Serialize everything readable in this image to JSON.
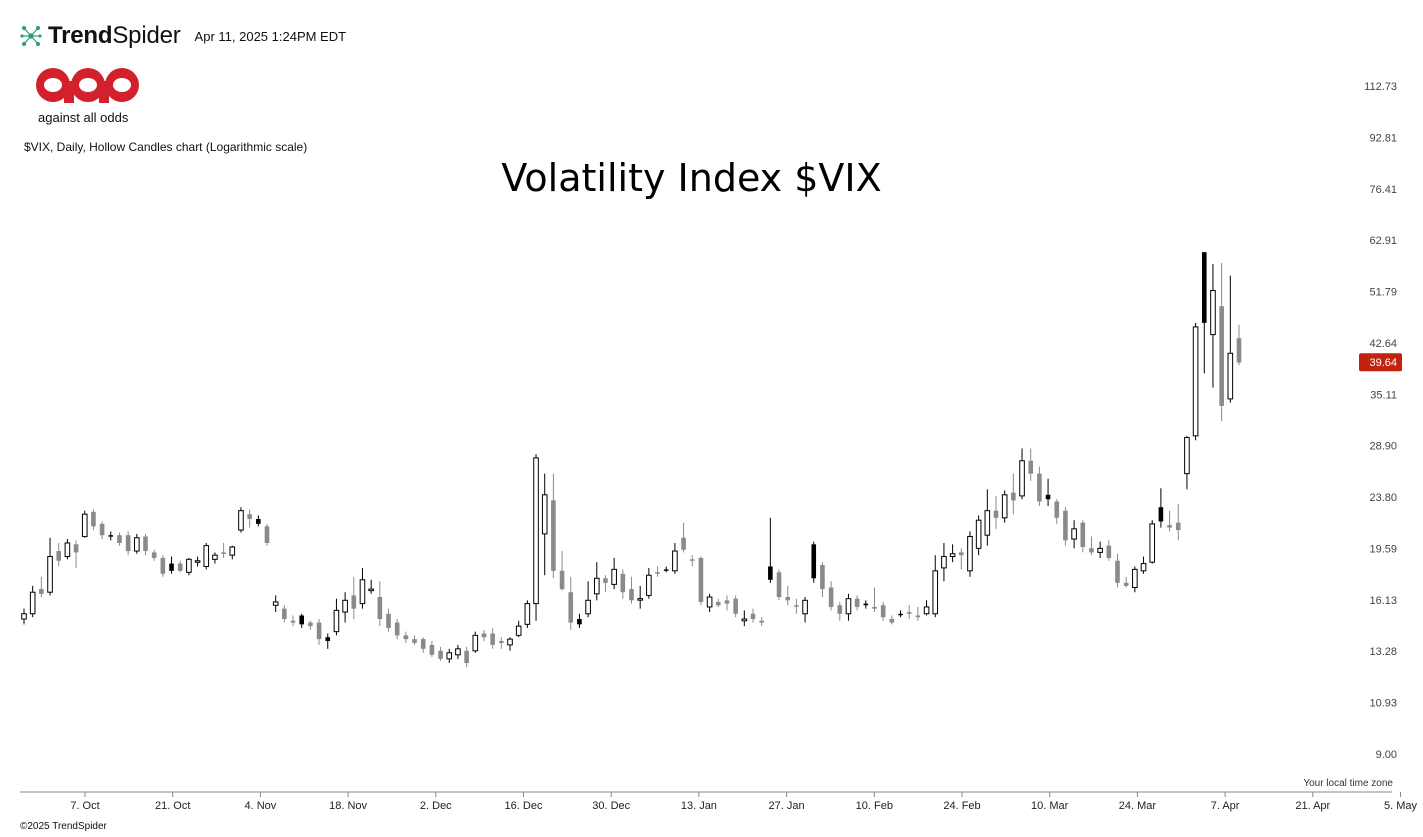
{
  "header": {
    "brand_bold": "Trend",
    "brand_light": "Spider",
    "timestamp": "Apr 11, 2025 1:24PM EDT"
  },
  "logo": {
    "caption": "against all odds",
    "color": "#d2202c"
  },
  "subtitle": "$VIX, Daily, Hollow Candles chart (Logarithmic scale)",
  "title": "Volatility Index $VIX",
  "local_tz": "Your local time zone",
  "copyright": "©2025 TrendSpider",
  "colors": {
    "grey": "#8a8a8a",
    "black": "#000000",
    "hollow_stroke": "#000000",
    "last_price_bg": "#c0230f"
  },
  "chart_data": {
    "type": "candlestick",
    "symbol": "$VIX",
    "interval": "Daily",
    "style": "Hollow Candles",
    "scale": "logarithmic",
    "ylim": [
      8.4,
      121
    ],
    "y_ticks": [
      "112.73",
      "92.81",
      "76.41",
      "62.91",
      "51.79",
      "42.64",
      "35.11",
      "28.90",
      "23.80",
      "19.59",
      "16.13",
      "13.28",
      "10.93",
      "9.00"
    ],
    "x_ticks": [
      "7. Oct",
      "21. Oct",
      "4. Nov",
      "18. Nov",
      "2. Dec",
      "16. Dec",
      "30. Dec",
      "13. Jan",
      "27. Jan",
      "10. Feb",
      "24. Feb",
      "10. Mar",
      "24. Mar",
      "7. Apr",
      "21. Apr",
      "5. May"
    ],
    "last_price": "39.64",
    "candles": [
      {
        "o": 15.0,
        "h": 15.6,
        "l": 14.7,
        "c": 15.3,
        "s": "hollow"
      },
      {
        "o": 15.3,
        "h": 17.0,
        "l": 15.1,
        "c": 16.6,
        "s": "hollow"
      },
      {
        "o": 16.5,
        "h": 17.6,
        "l": 16.3,
        "c": 16.8,
        "s": "grey"
      },
      {
        "o": 16.6,
        "h": 20.4,
        "l": 16.4,
        "c": 19.0,
        "s": "hollow"
      },
      {
        "o": 19.4,
        "h": 20.0,
        "l": 18.3,
        "c": 18.7,
        "s": "grey"
      },
      {
        "o": 19.0,
        "h": 20.3,
        "l": 18.8,
        "c": 20.0,
        "s": "hollow"
      },
      {
        "o": 19.9,
        "h": 20.2,
        "l": 18.2,
        "c": 19.3,
        "s": "grey"
      },
      {
        "o": 20.5,
        "h": 22.6,
        "l": 20.4,
        "c": 22.3,
        "s": "hollow"
      },
      {
        "o": 22.5,
        "h": 22.7,
        "l": 21.0,
        "c": 21.3,
        "s": "grey"
      },
      {
        "o": 21.5,
        "h": 21.7,
        "l": 20.3,
        "c": 20.6,
        "s": "grey"
      },
      {
        "o": 20.5,
        "h": 20.9,
        "l": 20.2,
        "c": 20.6,
        "s": "black"
      },
      {
        "o": 20.6,
        "h": 20.8,
        "l": 19.8,
        "c": 20.0,
        "s": "grey"
      },
      {
        "o": 20.6,
        "h": 20.9,
        "l": 19.1,
        "c": 19.4,
        "s": "grey"
      },
      {
        "o": 19.4,
        "h": 20.7,
        "l": 19.2,
        "c": 20.4,
        "s": "hollow"
      },
      {
        "o": 20.5,
        "h": 20.7,
        "l": 19.1,
        "c": 19.4,
        "s": "grey"
      },
      {
        "o": 19.3,
        "h": 19.5,
        "l": 18.7,
        "c": 18.9,
        "s": "grey"
      },
      {
        "o": 18.9,
        "h": 19.1,
        "l": 17.6,
        "c": 17.8,
        "s": "grey"
      },
      {
        "o": 18.5,
        "h": 19.0,
        "l": 17.8,
        "c": 18.0,
        "s": "black"
      },
      {
        "o": 18.5,
        "h": 18.7,
        "l": 17.9,
        "c": 18.0,
        "s": "grey"
      },
      {
        "o": 17.9,
        "h": 18.9,
        "l": 17.7,
        "c": 18.8,
        "s": "hollow"
      },
      {
        "o": 18.6,
        "h": 19.0,
        "l": 18.3,
        "c": 18.7,
        "s": "hollow"
      },
      {
        "o": 18.3,
        "h": 20.0,
        "l": 18.1,
        "c": 19.8,
        "s": "hollow"
      },
      {
        "o": 18.8,
        "h": 19.3,
        "l": 18.5,
        "c": 19.1,
        "s": "hollow"
      },
      {
        "o": 19.2,
        "h": 20.0,
        "l": 18.9,
        "c": 19.3,
        "s": "grey"
      },
      {
        "o": 19.1,
        "h": 19.8,
        "l": 18.8,
        "c": 19.7,
        "s": "hollow"
      },
      {
        "o": 21.0,
        "h": 22.9,
        "l": 20.8,
        "c": 22.6,
        "s": "hollow"
      },
      {
        "o": 22.3,
        "h": 22.7,
        "l": 21.2,
        "c": 21.9,
        "s": "grey"
      },
      {
        "o": 21.9,
        "h": 22.2,
        "l": 21.3,
        "c": 21.5,
        "s": "black"
      },
      {
        "o": 21.3,
        "h": 21.5,
        "l": 19.8,
        "c": 20.0,
        "s": "grey"
      },
      {
        "o": 15.8,
        "h": 16.4,
        "l": 15.4,
        "c": 16.0,
        "s": "hollow"
      },
      {
        "o": 15.6,
        "h": 15.8,
        "l": 14.8,
        "c": 15.0,
        "s": "grey"
      },
      {
        "o": 14.9,
        "h": 15.2,
        "l": 14.6,
        "c": 14.8,
        "s": "grey"
      },
      {
        "o": 15.2,
        "h": 15.3,
        "l": 14.5,
        "c": 14.7,
        "s": "black"
      },
      {
        "o": 14.8,
        "h": 14.9,
        "l": 14.4,
        "c": 14.6,
        "s": "grey"
      },
      {
        "o": 14.8,
        "h": 15.0,
        "l": 13.6,
        "c": 13.9,
        "s": "grey"
      },
      {
        "o": 13.8,
        "h": 14.2,
        "l": 13.4,
        "c": 14.0,
        "s": "black"
      },
      {
        "o": 14.3,
        "h": 16.2,
        "l": 14.1,
        "c": 15.5,
        "s": "hollow"
      },
      {
        "o": 15.4,
        "h": 16.6,
        "l": 14.8,
        "c": 16.1,
        "s": "hollow"
      },
      {
        "o": 16.4,
        "h": 17.6,
        "l": 15.0,
        "c": 15.6,
        "s": "grey"
      },
      {
        "o": 15.9,
        "h": 18.2,
        "l": 15.6,
        "c": 17.4,
        "s": "hollow"
      },
      {
        "o": 16.8,
        "h": 17.4,
        "l": 16.5,
        "c": 16.7,
        "s": "hollow"
      },
      {
        "o": 16.3,
        "h": 17.3,
        "l": 14.6,
        "c": 15.0,
        "s": "grey"
      },
      {
        "o": 15.3,
        "h": 15.6,
        "l": 14.3,
        "c": 14.5,
        "s": "grey"
      },
      {
        "o": 14.8,
        "h": 15.0,
        "l": 13.9,
        "c": 14.1,
        "s": "grey"
      },
      {
        "o": 14.1,
        "h": 14.3,
        "l": 13.7,
        "c": 13.9,
        "s": "grey"
      },
      {
        "o": 13.9,
        "h": 14.1,
        "l": 13.6,
        "c": 13.7,
        "s": "grey"
      },
      {
        "o": 13.9,
        "h": 14.0,
        "l": 13.2,
        "c": 13.4,
        "s": "grey"
      },
      {
        "o": 13.6,
        "h": 13.8,
        "l": 13.0,
        "c": 13.1,
        "s": "grey"
      },
      {
        "o": 13.3,
        "h": 13.5,
        "l": 12.8,
        "c": 12.9,
        "s": "grey"
      },
      {
        "o": 12.9,
        "h": 13.4,
        "l": 12.7,
        "c": 13.2,
        "s": "hollow"
      },
      {
        "o": 13.1,
        "h": 13.6,
        "l": 12.9,
        "c": 13.4,
        "s": "hollow"
      },
      {
        "o": 13.3,
        "h": 13.5,
        "l": 12.5,
        "c": 12.7,
        "s": "grey"
      },
      {
        "o": 13.3,
        "h": 14.3,
        "l": 13.2,
        "c": 14.1,
        "s": "hollow"
      },
      {
        "o": 14.0,
        "h": 14.4,
        "l": 13.8,
        "c": 14.2,
        "s": "grey"
      },
      {
        "o": 14.2,
        "h": 14.5,
        "l": 13.4,
        "c": 13.6,
        "s": "grey"
      },
      {
        "o": 13.7,
        "h": 14.0,
        "l": 13.4,
        "c": 13.8,
        "s": "grey"
      },
      {
        "o": 13.6,
        "h": 14.0,
        "l": 13.3,
        "c": 13.9,
        "s": "hollow"
      },
      {
        "o": 14.1,
        "h": 14.9,
        "l": 14.0,
        "c": 14.6,
        "s": "hollow"
      },
      {
        "o": 14.7,
        "h": 16.1,
        "l": 14.5,
        "c": 15.9,
        "s": "hollow"
      },
      {
        "o": 15.9,
        "h": 28.0,
        "l": 14.9,
        "c": 27.6,
        "s": "hollow"
      },
      {
        "o": 20.7,
        "h": 26.0,
        "l": 17.7,
        "c": 24.0,
        "s": "hollow"
      },
      {
        "o": 23.5,
        "h": 26.0,
        "l": 17.5,
        "c": 18.0,
        "s": "grey"
      },
      {
        "o": 18.0,
        "h": 19.4,
        "l": 16.7,
        "c": 16.8,
        "s": "grey"
      },
      {
        "o": 16.6,
        "h": 17.6,
        "l": 14.4,
        "c": 14.8,
        "s": "grey"
      },
      {
        "o": 15.0,
        "h": 15.3,
        "l": 14.5,
        "c": 14.7,
        "s": "black"
      },
      {
        "o": 15.3,
        "h": 17.3,
        "l": 15.1,
        "c": 16.1,
        "s": "hollow"
      },
      {
        "o": 16.5,
        "h": 18.6,
        "l": 16.1,
        "c": 17.5,
        "s": "hollow"
      },
      {
        "o": 17.2,
        "h": 17.7,
        "l": 16.6,
        "c": 17.5,
        "s": "grey"
      },
      {
        "o": 17.1,
        "h": 18.9,
        "l": 16.8,
        "c": 18.1,
        "s": "hollow"
      },
      {
        "o": 17.8,
        "h": 18.1,
        "l": 16.2,
        "c": 16.6,
        "s": "grey"
      },
      {
        "o": 16.8,
        "h": 17.6,
        "l": 15.9,
        "c": 16.1,
        "s": "grey"
      },
      {
        "o": 16.2,
        "h": 17.0,
        "l": 15.6,
        "c": 16.2,
        "s": "hollow"
      },
      {
        "o": 16.4,
        "h": 18.2,
        "l": 16.2,
        "c": 17.7,
        "s": "hollow"
      },
      {
        "o": 17.9,
        "h": 18.3,
        "l": 17.6,
        "c": 17.8,
        "s": "grey"
      },
      {
        "o": 18.1,
        "h": 18.3,
        "l": 17.9,
        "c": 18.0,
        "s": "black"
      },
      {
        "o": 18.0,
        "h": 20.0,
        "l": 17.8,
        "c": 19.4,
        "s": "hollow"
      },
      {
        "o": 20.4,
        "h": 21.6,
        "l": 19.3,
        "c": 19.5,
        "s": "grey"
      },
      {
        "o": 18.8,
        "h": 19.1,
        "l": 18.3,
        "c": 18.7,
        "s": "grey"
      },
      {
        "o": 18.9,
        "h": 19.0,
        "l": 15.8,
        "c": 16.0,
        "s": "grey"
      },
      {
        "o": 15.7,
        "h": 16.5,
        "l": 15.4,
        "c": 16.3,
        "s": "hollow"
      },
      {
        "o": 16.0,
        "h": 16.2,
        "l": 15.7,
        "c": 15.8,
        "s": "grey"
      },
      {
        "o": 16.1,
        "h": 16.4,
        "l": 15.5,
        "c": 15.9,
        "s": "grey"
      },
      {
        "o": 16.2,
        "h": 16.4,
        "l": 15.1,
        "c": 15.3,
        "s": "grey"
      },
      {
        "o": 14.9,
        "h": 15.5,
        "l": 14.6,
        "c": 15.0,
        "s": "hollow"
      },
      {
        "o": 15.3,
        "h": 15.6,
        "l": 14.8,
        "c": 15.0,
        "s": "grey"
      },
      {
        "o": 14.9,
        "h": 15.1,
        "l": 14.6,
        "c": 14.8,
        "s": "grey"
      },
      {
        "o": 18.3,
        "h": 22.0,
        "l": 17.2,
        "c": 17.4,
        "s": "black"
      },
      {
        "o": 17.9,
        "h": 18.1,
        "l": 16.1,
        "c": 16.3,
        "s": "grey"
      },
      {
        "o": 16.3,
        "h": 17.0,
        "l": 15.8,
        "c": 16.1,
        "s": "grey"
      },
      {
        "o": 15.8,
        "h": 16.2,
        "l": 15.3,
        "c": 15.8,
        "s": "grey"
      },
      {
        "o": 15.3,
        "h": 16.3,
        "l": 14.8,
        "c": 16.1,
        "s": "hollow"
      },
      {
        "o": 19.9,
        "h": 20.1,
        "l": 17.2,
        "c": 17.5,
        "s": "black"
      },
      {
        "o": 18.4,
        "h": 18.6,
        "l": 16.3,
        "c": 16.8,
        "s": "grey"
      },
      {
        "o": 16.9,
        "h": 17.3,
        "l": 15.5,
        "c": 15.7,
        "s": "grey"
      },
      {
        "o": 15.8,
        "h": 16.0,
        "l": 14.9,
        "c": 15.3,
        "s": "grey"
      },
      {
        "o": 15.3,
        "h": 16.5,
        "l": 14.9,
        "c": 16.2,
        "s": "hollow"
      },
      {
        "o": 16.2,
        "h": 16.4,
        "l": 15.5,
        "c": 15.7,
        "s": "grey"
      },
      {
        "o": 15.8,
        "h": 16.1,
        "l": 15.6,
        "c": 15.9,
        "s": "black"
      },
      {
        "o": 15.7,
        "h": 16.9,
        "l": 15.4,
        "c": 15.6,
        "s": "grey"
      },
      {
        "o": 15.8,
        "h": 16.0,
        "l": 14.9,
        "c": 15.1,
        "s": "grey"
      },
      {
        "o": 15.0,
        "h": 15.2,
        "l": 14.7,
        "c": 14.8,
        "s": "grey"
      },
      {
        "o": 15.3,
        "h": 15.5,
        "l": 15.1,
        "c": 15.3,
        "s": "black"
      },
      {
        "o": 15.3,
        "h": 15.8,
        "l": 15.0,
        "c": 15.4,
        "s": "grey"
      },
      {
        "o": 15.1,
        "h": 15.7,
        "l": 14.9,
        "c": 15.2,
        "s": "grey"
      },
      {
        "o": 15.3,
        "h": 16.1,
        "l": 15.2,
        "c": 15.7,
        "s": "hollow"
      },
      {
        "o": 15.3,
        "h": 19.1,
        "l": 15.1,
        "c": 18.0,
        "s": "hollow"
      },
      {
        "o": 18.2,
        "h": 20.0,
        "l": 17.3,
        "c": 19.0,
        "s": "hollow"
      },
      {
        "o": 19.0,
        "h": 19.9,
        "l": 18.6,
        "c": 19.2,
        "s": "hollow"
      },
      {
        "o": 19.3,
        "h": 19.6,
        "l": 18.1,
        "c": 19.1,
        "s": "grey"
      },
      {
        "o": 18.0,
        "h": 20.9,
        "l": 17.6,
        "c": 20.5,
        "s": "hollow"
      },
      {
        "o": 19.6,
        "h": 22.2,
        "l": 19.1,
        "c": 21.8,
        "s": "hollow"
      },
      {
        "o": 20.6,
        "h": 24.5,
        "l": 19.8,
        "c": 22.6,
        "s": "hollow"
      },
      {
        "o": 22.6,
        "h": 23.9,
        "l": 21.1,
        "c": 22.0,
        "s": "grey"
      },
      {
        "o": 22.0,
        "h": 24.4,
        "l": 21.6,
        "c": 24.0,
        "s": "hollow"
      },
      {
        "o": 24.2,
        "h": 26.0,
        "l": 22.3,
        "c": 23.5,
        "s": "grey"
      },
      {
        "o": 23.9,
        "h": 28.6,
        "l": 23.6,
        "c": 27.3,
        "s": "hollow"
      },
      {
        "o": 27.3,
        "h": 28.6,
        "l": 25.3,
        "c": 26.0,
        "s": "grey"
      },
      {
        "o": 26.0,
        "h": 26.7,
        "l": 23.0,
        "c": 23.4,
        "s": "grey"
      },
      {
        "o": 24.0,
        "h": 25.5,
        "l": 23.0,
        "c": 23.6,
        "s": "black"
      },
      {
        "o": 23.4,
        "h": 23.6,
        "l": 21.5,
        "c": 22.0,
        "s": "grey"
      },
      {
        "o": 22.6,
        "h": 22.9,
        "l": 19.8,
        "c": 20.2,
        "s": "grey"
      },
      {
        "o": 20.3,
        "h": 21.8,
        "l": 19.6,
        "c": 21.1,
        "s": "hollow"
      },
      {
        "o": 21.6,
        "h": 21.8,
        "l": 19.3,
        "c": 19.7,
        "s": "grey"
      },
      {
        "o": 19.6,
        "h": 20.5,
        "l": 19.1,
        "c": 19.3,
        "s": "grey"
      },
      {
        "o": 19.3,
        "h": 20.1,
        "l": 18.9,
        "c": 19.6,
        "s": "hollow"
      },
      {
        "o": 19.8,
        "h": 20.2,
        "l": 18.7,
        "c": 18.9,
        "s": "grey"
      },
      {
        "o": 18.7,
        "h": 19.2,
        "l": 16.9,
        "c": 17.2,
        "s": "grey"
      },
      {
        "o": 17.2,
        "h": 17.6,
        "l": 16.9,
        "c": 17.0,
        "s": "grey"
      },
      {
        "o": 16.9,
        "h": 18.3,
        "l": 16.6,
        "c": 18.1,
        "s": "hollow"
      },
      {
        "o": 18.0,
        "h": 19.0,
        "l": 17.8,
        "c": 18.5,
        "s": "hollow"
      },
      {
        "o": 18.6,
        "h": 21.8,
        "l": 18.5,
        "c": 21.5,
        "s": "hollow"
      },
      {
        "o": 22.9,
        "h": 24.6,
        "l": 21.2,
        "c": 21.7,
        "s": "black"
      },
      {
        "o": 21.4,
        "h": 22.6,
        "l": 20.9,
        "c": 21.2,
        "s": "grey"
      },
      {
        "o": 21.6,
        "h": 23.2,
        "l": 20.2,
        "c": 21.0,
        "s": "grey"
      },
      {
        "o": 26.0,
        "h": 30.0,
        "l": 24.5,
        "c": 29.8,
        "s": "hollow"
      },
      {
        "o": 30.0,
        "h": 46.0,
        "l": 29.5,
        "c": 45.3,
        "s": "hollow"
      },
      {
        "o": 46.0,
        "h": 60.1,
        "l": 38.0,
        "c": 60.1,
        "s": "black"
      },
      {
        "o": 44.0,
        "h": 57.5,
        "l": 36.0,
        "c": 52.0,
        "s": "hollow"
      },
      {
        "o": 49.0,
        "h": 57.7,
        "l": 31.7,
        "c": 33.6,
        "s": "grey"
      },
      {
        "o": 34.5,
        "h": 55.0,
        "l": 34.0,
        "c": 41.0,
        "s": "hollow"
      },
      {
        "o": 43.4,
        "h": 45.7,
        "l": 39.2,
        "c": 39.6,
        "s": "grey"
      }
    ]
  }
}
